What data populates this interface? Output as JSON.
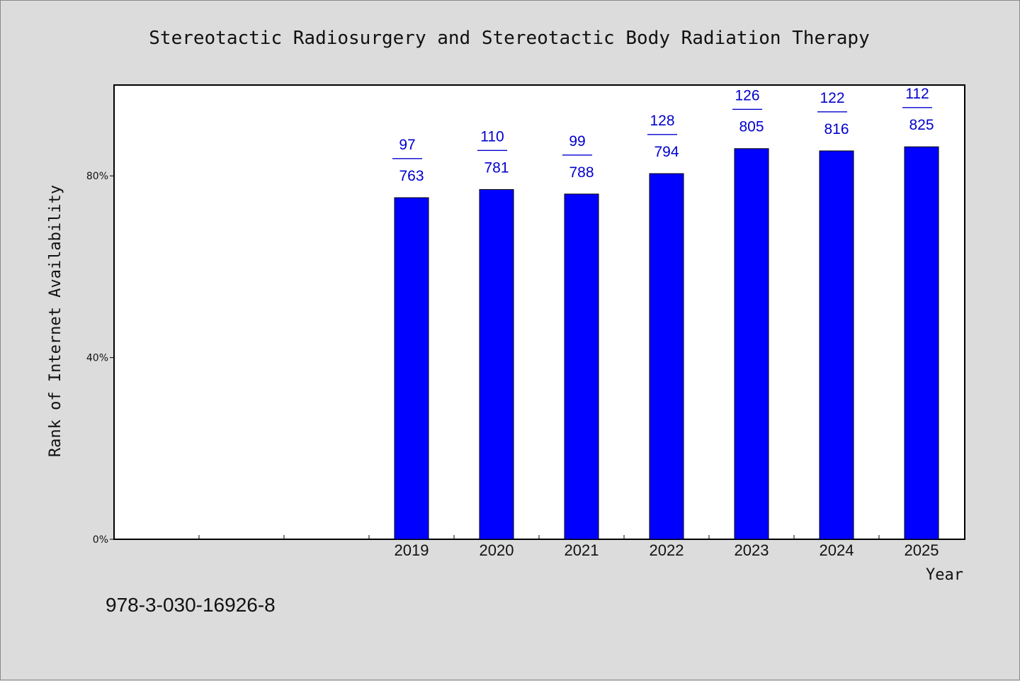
{
  "footer_text": "978-3-030-16926-8",
  "colors": {
    "bar": "#0000ff",
    "label": "#0000cc",
    "background": "#dcdcdc",
    "plot_bg": "#ffffff"
  },
  "chart_data": {
    "type": "bar",
    "title": "Stereotactic Radiosurgery and Stereotactic Body Radiation Therapy",
    "xlabel": "Year",
    "ylabel": "Rank of Internet Availability",
    "categories": [
      "",
      "",
      "",
      "2019",
      "2020",
      "2021",
      "2022",
      "2023",
      "2024",
      "2025"
    ],
    "values_percent": [
      null,
      null,
      null,
      75.2,
      77.0,
      76.0,
      80.5,
      86.0,
      85.5,
      86.4
    ],
    "data_labels": [
      null,
      null,
      null,
      {
        "top": "97",
        "sep": "——",
        "bottom": "763"
      },
      {
        "top": "110",
        "sep": "——",
        "bottom": "781"
      },
      {
        "top": "99",
        "sep": "——",
        "bottom": "788"
      },
      {
        "top": "128",
        "sep": "——",
        "bottom": "794"
      },
      {
        "top": "126",
        "sep": "——",
        "bottom": "805"
      },
      {
        "top": "122",
        "sep": "——",
        "bottom": "816"
      },
      {
        "top": "112",
        "sep": "——",
        "bottom": "825"
      }
    ],
    "yticks": [
      0,
      40,
      80
    ],
    "ytick_labels": [
      "0%",
      "40%",
      "80%"
    ],
    "ylim": [
      0,
      100
    ],
    "grid": false,
    "legend": "none"
  }
}
